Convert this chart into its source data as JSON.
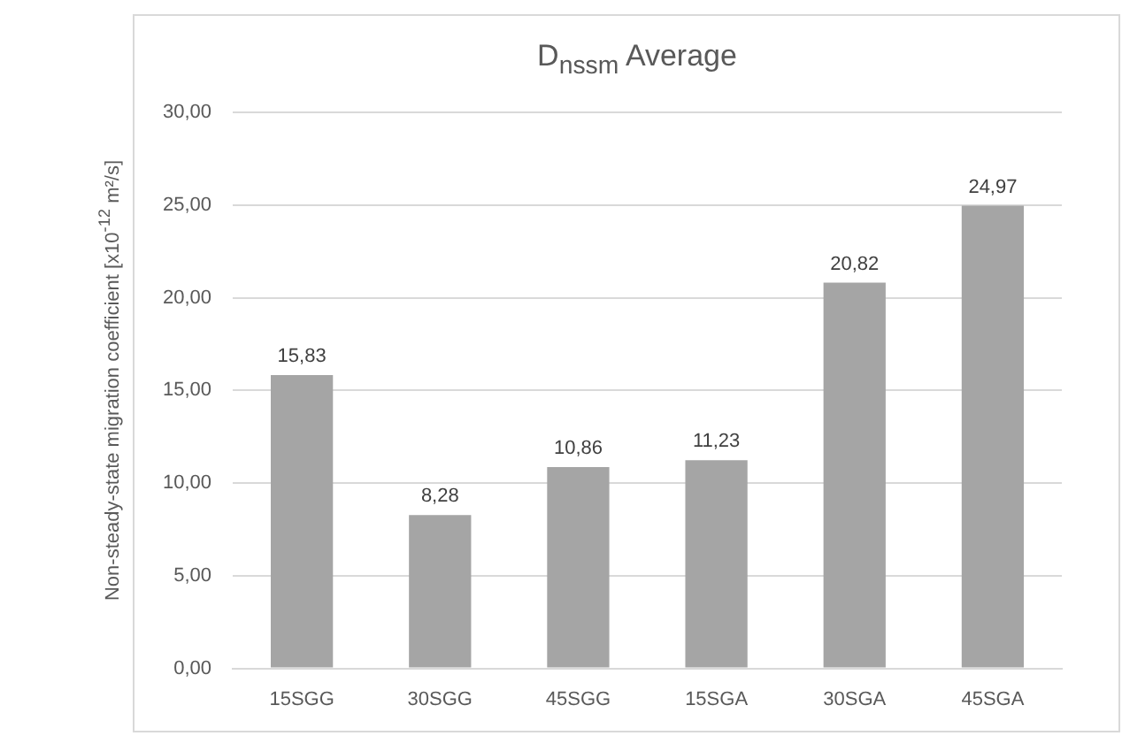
{
  "chart_data": {
    "type": "bar",
    "title": "D$_{nssm}$ Average",
    "ylabel": "Non-steady-state migration coefficient [x10$^{-12}$ m²/s]",
    "categories": [
      "15SGG",
      "30SGG",
      "45SGG",
      "15SGA",
      "30SGA",
      "45SGA"
    ],
    "values": [
      15.83,
      8.28,
      10.86,
      11.23,
      20.82,
      24.97
    ],
    "value_labels": [
      "15,83",
      "8,28",
      "10,86",
      "11,23",
      "20,82",
      "24,97"
    ],
    "color": "#a5a5a5",
    "ylim": [
      0,
      30
    ],
    "yticks": [
      {
        "value": 0,
        "label": "0,00"
      },
      {
        "value": 5,
        "label": "5,00"
      },
      {
        "value": 10,
        "label": "10,00"
      },
      {
        "value": 15,
        "label": "15,00"
      },
      {
        "value": 20,
        "label": "20,00"
      },
      {
        "value": 25,
        "label": "25,00"
      },
      {
        "value": 30,
        "label": "30,00"
      }
    ],
    "grid": "y",
    "legend": false
  }
}
